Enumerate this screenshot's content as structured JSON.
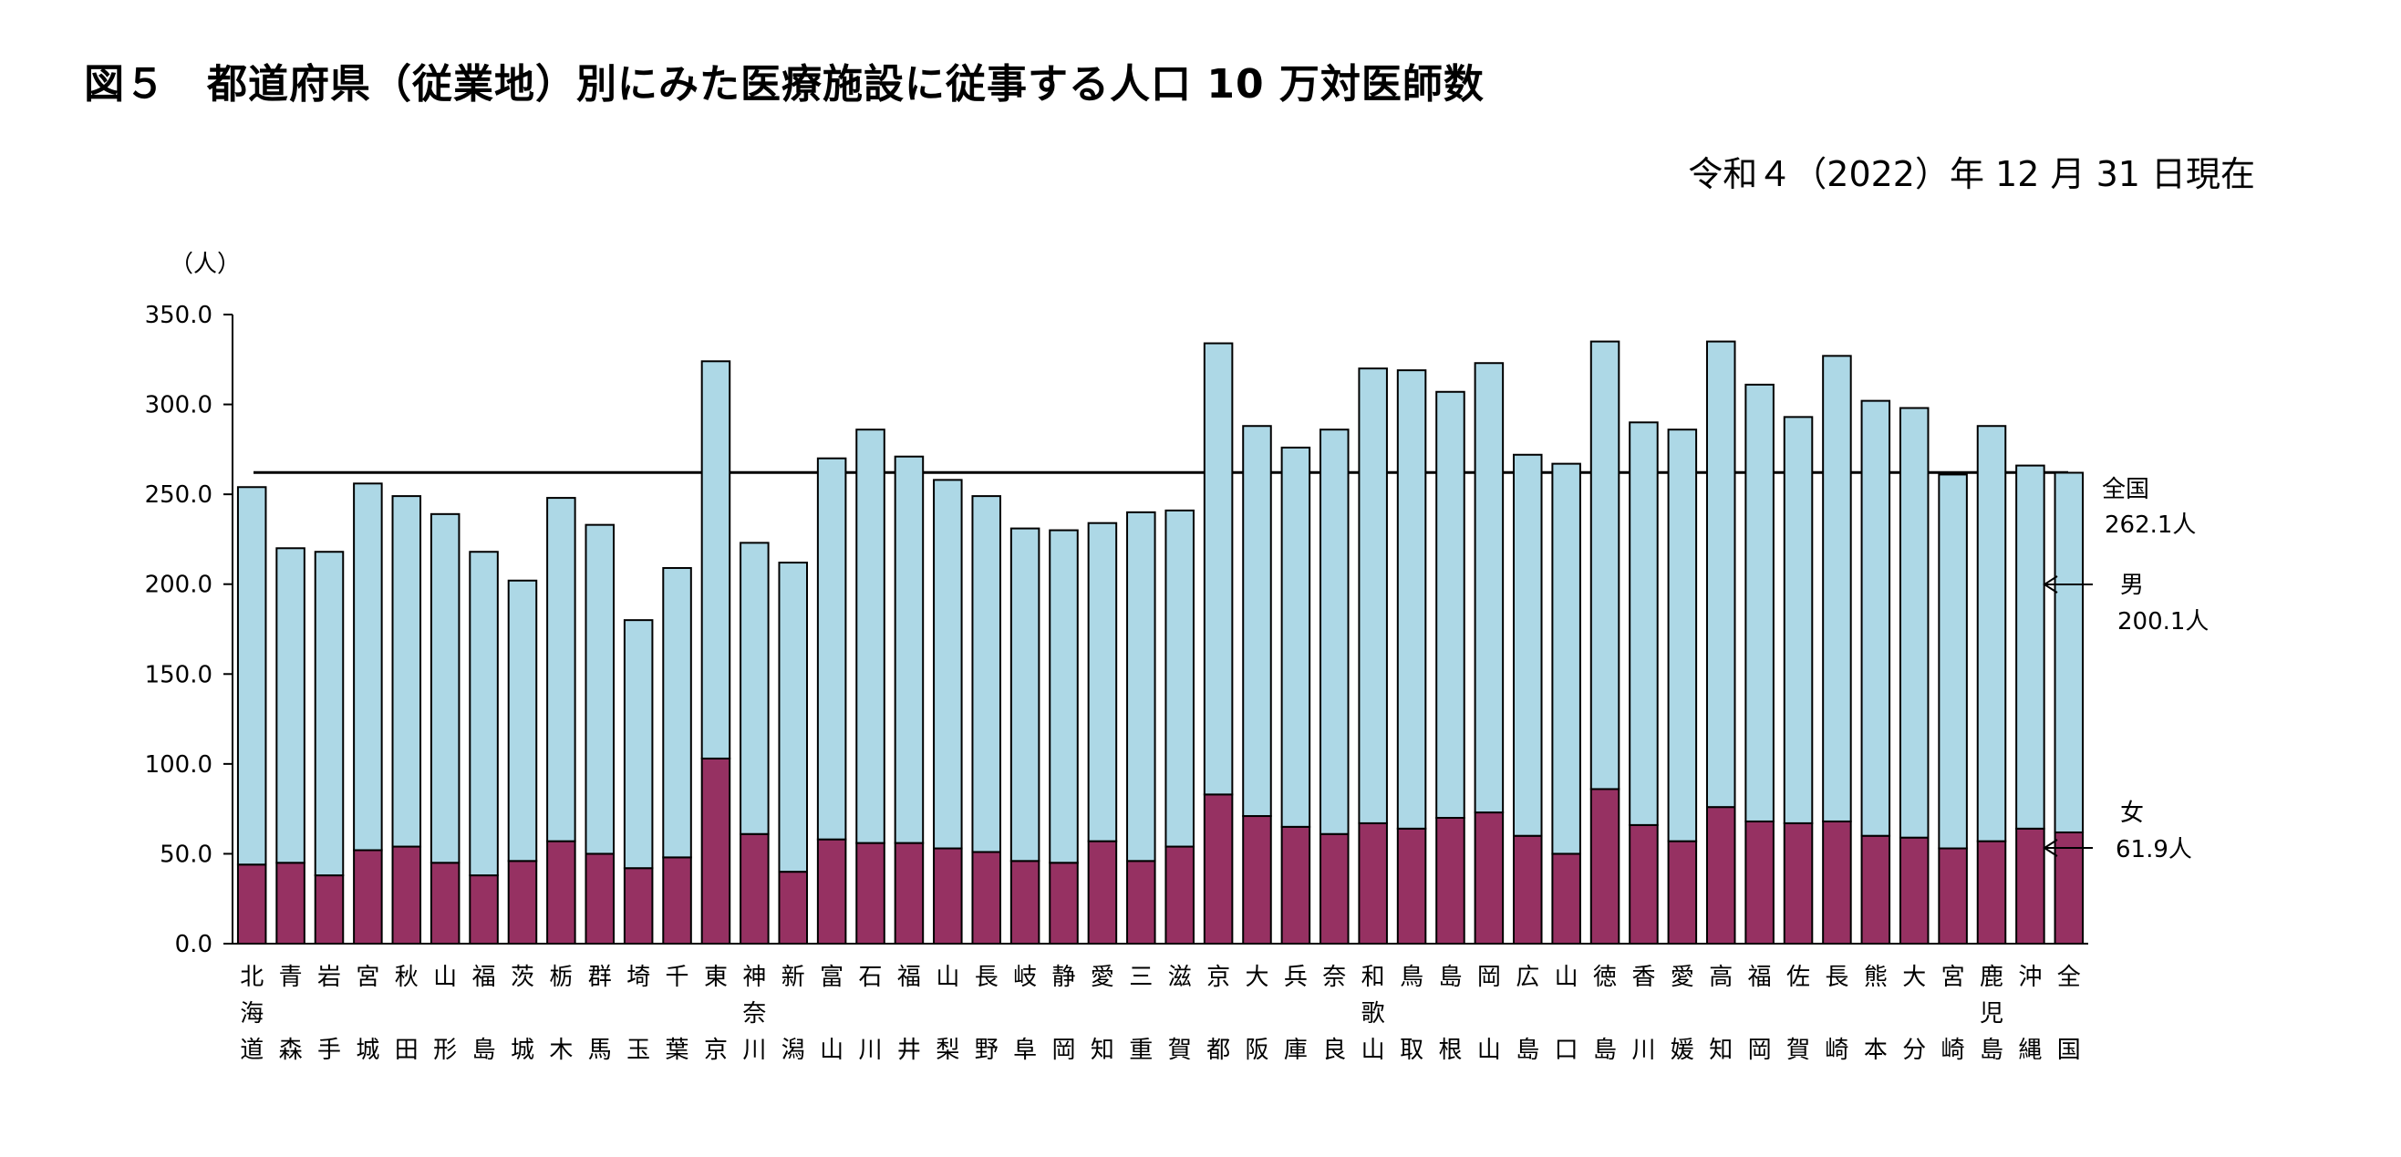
{
  "title": "図５　都道府県（従業地）別にみた医療施設に従事する人口 10 万対医師数",
  "date_note": "令和４（2022）年 12 月 31 日現在",
  "colors": {
    "male": "#add8e6",
    "female": "#963162",
    "line": "#000000"
  },
  "annotations": {
    "national": {
      "label": "全国",
      "value": "262.1人"
    },
    "male": {
      "label": "男",
      "value": "200.1人"
    },
    "female": {
      "label": "女",
      "value": "61.9人"
    }
  },
  "chart_data": {
    "type": "bar",
    "stacked": true,
    "ylabel": "（人）",
    "ylim": [
      0,
      350
    ],
    "yticks": [
      "0.0",
      "50.0",
      "100.0",
      "150.0",
      "200.0",
      "250.0",
      "300.0",
      "350.0"
    ],
    "reference_line": 262.1,
    "categories": [
      "北海道",
      "青森",
      "岩手",
      "宮城",
      "秋田",
      "山形",
      "福島",
      "茨城",
      "栃木",
      "群馬",
      "埼玉",
      "千葉",
      "東京",
      "神奈川",
      "新潟",
      "富山",
      "石川",
      "福井",
      "山梨",
      "長野",
      "岐阜",
      "静岡",
      "愛知",
      "三重",
      "滋賀",
      "京都",
      "大阪",
      "兵庫",
      "奈良",
      "和歌山",
      "鳥取",
      "島根",
      "岡山",
      "広島",
      "山口",
      "徳島",
      "香川",
      "愛媛",
      "高知",
      "福岡",
      "佐賀",
      "長崎",
      "熊本",
      "大分",
      "宮崎",
      "鹿児島",
      "沖縄",
      "全国"
    ],
    "series": [
      {
        "name": "女",
        "values": [
          44,
          45,
          38,
          52,
          54,
          45,
          38,
          46,
          57,
          50,
          42,
          48,
          103,
          61,
          40,
          58,
          56,
          56,
          53,
          51,
          46,
          45,
          57,
          46,
          54,
          83,
          71,
          65,
          61,
          67,
          64,
          70,
          73,
          60,
          50,
          86,
          66,
          57,
          76,
          68,
          67,
          68,
          60,
          59,
          53,
          57,
          64,
          61.9
        ]
      },
      {
        "name": "男",
        "values": [
          210,
          175,
          180,
          204,
          195,
          194,
          180,
          156,
          191,
          183,
          138,
          161,
          221,
          162,
          172,
          212,
          230,
          215,
          205,
          198,
          185,
          185,
          177,
          194,
          187,
          251,
          217,
          211,
          225,
          253,
          255,
          237,
          250,
          212,
          217,
          249,
          224,
          229,
          259,
          243,
          226,
          259,
          242,
          239,
          208,
          231,
          202,
          200.1
        ]
      }
    ]
  }
}
